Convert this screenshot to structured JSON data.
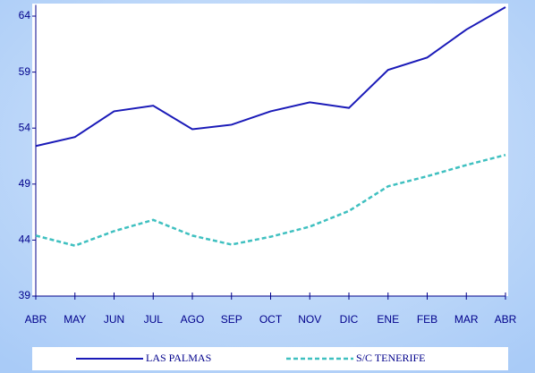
{
  "chart_data": {
    "type": "line",
    "categories": [
      "ABR",
      "MAY",
      "JUN",
      "JUL",
      "AGO",
      "SEP",
      "OCT",
      "NOV",
      "DIC",
      "ENE",
      "FEB",
      "MAR",
      "ABR"
    ],
    "series": [
      {
        "name": "LAS PALMAS",
        "color": "#1a1ab8",
        "dash": "solid",
        "values": [
          52.4,
          53.2,
          55.5,
          56.0,
          53.9,
          54.3,
          55.5,
          56.3,
          55.8,
          59.2,
          60.3,
          62.8,
          64.8
        ]
      },
      {
        "name": "S/C TENERIFE",
        "color": "#3fc0c0",
        "dash": "dashed",
        "values": [
          44.4,
          43.5,
          44.8,
          45.8,
          44.4,
          43.6,
          44.3,
          45.2,
          46.6,
          48.8,
          49.7,
          50.7,
          51.6
        ]
      }
    ],
    "ylim": [
      39,
      65
    ],
    "yticks": [
      39,
      44,
      49,
      54,
      59,
      64
    ],
    "grid": false,
    "legend": "bottom"
  }
}
